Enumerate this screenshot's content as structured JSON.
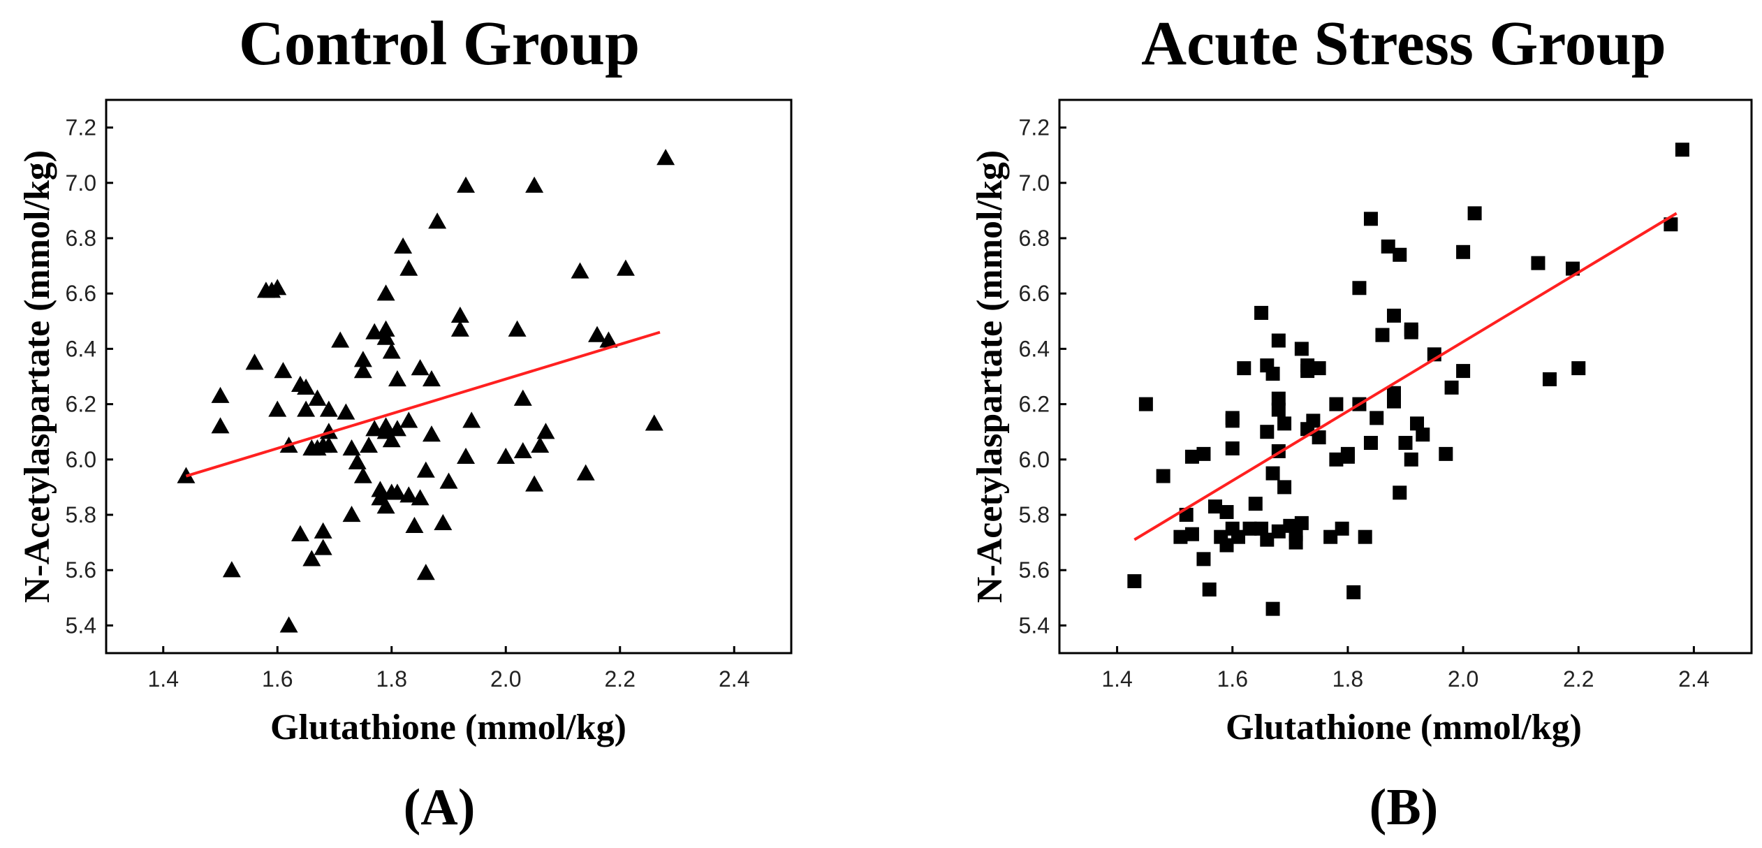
{
  "chart_data": [
    {
      "type": "scatter",
      "panel_label": "(A)",
      "title": "Control Group",
      "xlabel": "Glutathione (mmol/kg)",
      "ylabel": "N-Acetylaspartate (mmol/kg)",
      "xlim": [
        1.3,
        2.5
      ],
      "ylim": [
        5.3,
        7.3
      ],
      "xticks": [
        "1.4",
        "1.6",
        "1.8",
        "2.0",
        "2.2",
        "2.4"
      ],
      "yticks": [
        "5.4",
        "5.6",
        "5.8",
        "6.0",
        "6.2",
        "6.4",
        "6.6",
        "6.8",
        "7.0",
        "7.2"
      ],
      "marker": "triangle",
      "marker_color": "#000000",
      "fit_color": "#ff2020",
      "fit_line": {
        "x": [
          1.44,
          2.27
        ],
        "y": [
          5.94,
          6.46
        ]
      },
      "points": [
        [
          1.44,
          5.94
        ],
        [
          1.5,
          6.23
        ],
        [
          1.5,
          6.12
        ],
        [
          1.52,
          5.6
        ],
        [
          1.56,
          6.35
        ],
        [
          1.58,
          6.61
        ],
        [
          1.59,
          6.61
        ],
        [
          1.6,
          6.62
        ],
        [
          1.6,
          6.18
        ],
        [
          1.61,
          6.32
        ],
        [
          1.62,
          5.4
        ],
        [
          1.62,
          6.05
        ],
        [
          1.64,
          6.27
        ],
        [
          1.65,
          6.26
        ],
        [
          1.65,
          6.18
        ],
        [
          1.64,
          5.73
        ],
        [
          1.66,
          5.64
        ],
        [
          1.66,
          6.04
        ],
        [
          1.67,
          6.22
        ],
        [
          1.67,
          6.04
        ],
        [
          1.68,
          6.05
        ],
        [
          1.68,
          5.68
        ],
        [
          1.68,
          5.74
        ],
        [
          1.69,
          6.18
        ],
        [
          1.69,
          6.1
        ],
        [
          1.69,
          6.05
        ],
        [
          1.71,
          6.43
        ],
        [
          1.72,
          6.17
        ],
        [
          1.73,
          6.04
        ],
        [
          1.73,
          5.8
        ],
        [
          1.74,
          5.99
        ],
        [
          1.75,
          6.36
        ],
        [
          1.75,
          6.32
        ],
        [
          1.75,
          5.94
        ],
        [
          1.76,
          6.05
        ],
        [
          1.77,
          6.46
        ],
        [
          1.77,
          6.11
        ],
        [
          1.78,
          5.86
        ],
        [
          1.78,
          5.89
        ],
        [
          1.79,
          6.6
        ],
        [
          1.79,
          6.47
        ],
        [
          1.79,
          6.44
        ],
        [
          1.8,
          6.39
        ],
        [
          1.79,
          6.12
        ],
        [
          1.79,
          6.1
        ],
        [
          1.8,
          6.07
        ],
        [
          1.79,
          5.83
        ],
        [
          1.8,
          5.88
        ],
        [
          1.81,
          6.29
        ],
        [
          1.81,
          6.11
        ],
        [
          1.81,
          5.88
        ],
        [
          1.82,
          6.77
        ],
        [
          1.83,
          6.69
        ],
        [
          1.83,
          6.14
        ],
        [
          1.83,
          5.87
        ],
        [
          1.84,
          5.76
        ],
        [
          1.85,
          6.33
        ],
        [
          1.85,
          5.86
        ],
        [
          1.86,
          5.59
        ],
        [
          1.86,
          5.96
        ],
        [
          1.87,
          6.29
        ],
        [
          1.87,
          6.09
        ],
        [
          1.88,
          6.86
        ],
        [
          1.89,
          5.77
        ],
        [
          1.9,
          5.92
        ],
        [
          1.92,
          6.52
        ],
        [
          1.92,
          6.47
        ],
        [
          1.93,
          6.99
        ],
        [
          1.93,
          6.01
        ],
        [
          1.94,
          6.14
        ],
        [
          2.0,
          6.01
        ],
        [
          2.02,
          6.47
        ],
        [
          2.03,
          6.22
        ],
        [
          2.03,
          6.03
        ],
        [
          2.05,
          6.99
        ],
        [
          2.05,
          5.91
        ],
        [
          2.06,
          6.05
        ],
        [
          2.07,
          6.1
        ],
        [
          2.13,
          6.68
        ],
        [
          2.14,
          5.95
        ],
        [
          2.16,
          6.45
        ],
        [
          2.18,
          6.43
        ],
        [
          2.21,
          6.69
        ],
        [
          2.26,
          6.13
        ],
        [
          2.28,
          7.09
        ]
      ]
    },
    {
      "type": "scatter",
      "panel_label": "(B)",
      "title": "Acute Stress Group",
      "xlabel": "Glutathione (mmol/kg)",
      "ylabel": "N-Acetylaspartate (mmol/kg)",
      "xlim": [
        1.3,
        2.5
      ],
      "ylim": [
        5.3,
        7.3
      ],
      "xticks": [
        "1.4",
        "1.6",
        "1.8",
        "2.0",
        "2.2",
        "2.4"
      ],
      "yticks": [
        "5.4",
        "5.6",
        "5.8",
        "6.0",
        "6.2",
        "6.4",
        "6.6",
        "6.8",
        "7.0",
        "7.2"
      ],
      "marker": "square",
      "marker_color": "#000000",
      "fit_color": "#ff2020",
      "fit_line": {
        "x": [
          1.43,
          2.37
        ],
        "y": [
          5.71,
          6.89
        ]
      },
      "points": [
        [
          1.43,
          5.56
        ],
        [
          1.45,
          6.2
        ],
        [
          1.48,
          5.94
        ],
        [
          1.51,
          5.72
        ],
        [
          1.52,
          5.8
        ],
        [
          1.53,
          6.01
        ],
        [
          1.53,
          5.73
        ],
        [
          1.55,
          6.02
        ],
        [
          1.55,
          5.64
        ],
        [
          1.56,
          5.53
        ],
        [
          1.57,
          5.83
        ],
        [
          1.58,
          5.72
        ],
        [
          1.59,
          5.69
        ],
        [
          1.59,
          5.81
        ],
        [
          1.6,
          6.15
        ],
        [
          1.6,
          6.14
        ],
        [
          1.6,
          6.04
        ],
        [
          1.6,
          5.75
        ],
        [
          1.61,
          5.72
        ],
        [
          1.62,
          6.33
        ],
        [
          1.63,
          5.75
        ],
        [
          1.64,
          5.84
        ],
        [
          1.65,
          6.53
        ],
        [
          1.65,
          5.75
        ],
        [
          1.66,
          6.1
        ],
        [
          1.66,
          5.71
        ],
        [
          1.66,
          6.34
        ],
        [
          1.67,
          6.31
        ],
        [
          1.67,
          5.46
        ],
        [
          1.67,
          5.95
        ],
        [
          1.68,
          6.43
        ],
        [
          1.68,
          6.22
        ],
        [
          1.68,
          6.18
        ],
        [
          1.68,
          6.03
        ],
        [
          1.68,
          5.74
        ],
        [
          1.69,
          6.13
        ],
        [
          1.69,
          5.9
        ],
        [
          1.7,
          5.76
        ],
        [
          1.71,
          5.7
        ],
        [
          1.71,
          5.73
        ],
        [
          1.72,
          5.77
        ],
        [
          1.72,
          6.4
        ],
        [
          1.73,
          6.34
        ],
        [
          1.73,
          6.32
        ],
        [
          1.73,
          6.11
        ],
        [
          1.74,
          6.14
        ],
        [
          1.75,
          6.33
        ],
        [
          1.75,
          6.08
        ],
        [
          1.77,
          5.72
        ],
        [
          1.78,
          6.2
        ],
        [
          1.78,
          6.0
        ],
        [
          1.79,
          5.75
        ],
        [
          1.8,
          6.01
        ],
        [
          1.8,
          6.02
        ],
        [
          1.81,
          5.52
        ],
        [
          1.82,
          6.2
        ],
        [
          1.82,
          6.62
        ],
        [
          1.83,
          5.72
        ],
        [
          1.84,
          6.87
        ],
        [
          1.84,
          6.06
        ],
        [
          1.85,
          6.15
        ],
        [
          1.86,
          6.45
        ],
        [
          1.86,
          6.45
        ],
        [
          1.87,
          6.77
        ],
        [
          1.88,
          6.52
        ],
        [
          1.88,
          6.24
        ],
        [
          1.88,
          6.21
        ],
        [
          1.89,
          6.74
        ],
        [
          1.89,
          5.88
        ],
        [
          1.9,
          6.06
        ],
        [
          1.91,
          6.46
        ],
        [
          1.91,
          6.0
        ],
        [
          1.91,
          6.47
        ],
        [
          1.92,
          6.13
        ],
        [
          1.93,
          6.09
        ],
        [
          1.95,
          6.38
        ],
        [
          1.97,
          6.02
        ],
        [
          1.98,
          6.26
        ],
        [
          2.0,
          6.75
        ],
        [
          2.0,
          6.32
        ],
        [
          2.02,
          6.89
        ],
        [
          2.13,
          6.71
        ],
        [
          2.15,
          6.29
        ],
        [
          2.19,
          6.69
        ],
        [
          2.2,
          6.33
        ],
        [
          2.36,
          6.85
        ],
        [
          2.38,
          7.12
        ]
      ]
    }
  ]
}
